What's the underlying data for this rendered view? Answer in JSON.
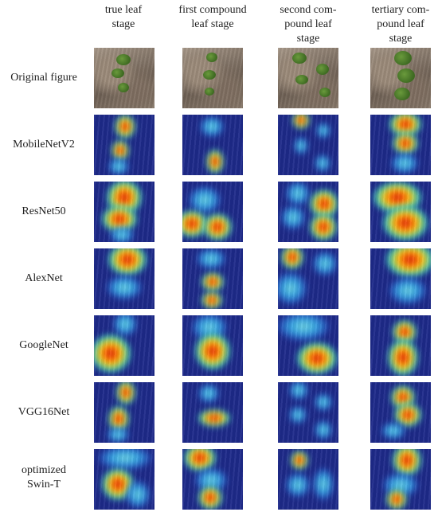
{
  "columns": [
    {
      "line1": "true leaf",
      "line2": "stage",
      "line3": ""
    },
    {
      "line1": "first compound",
      "line2": "leaf stage",
      "line3": ""
    },
    {
      "line1": "second com-",
      "line2": "pound leaf",
      "line3": "stage"
    },
    {
      "line1": "tertiary com-",
      "line2": "pound leaf",
      "line3": "stage"
    }
  ],
  "rows": [
    {
      "line1": "Original figure",
      "line2": ""
    },
    {
      "line1": "MobileNetV2",
      "line2": ""
    },
    {
      "line1": "ResNet50",
      "line2": ""
    },
    {
      "line1": "AlexNet",
      "line2": ""
    },
    {
      "line1": "GoogleNet",
      "line2": ""
    },
    {
      "line1": "VGG16Net",
      "line2": ""
    },
    {
      "line1": "optimized",
      "line2": "Swin-T"
    }
  ]
}
